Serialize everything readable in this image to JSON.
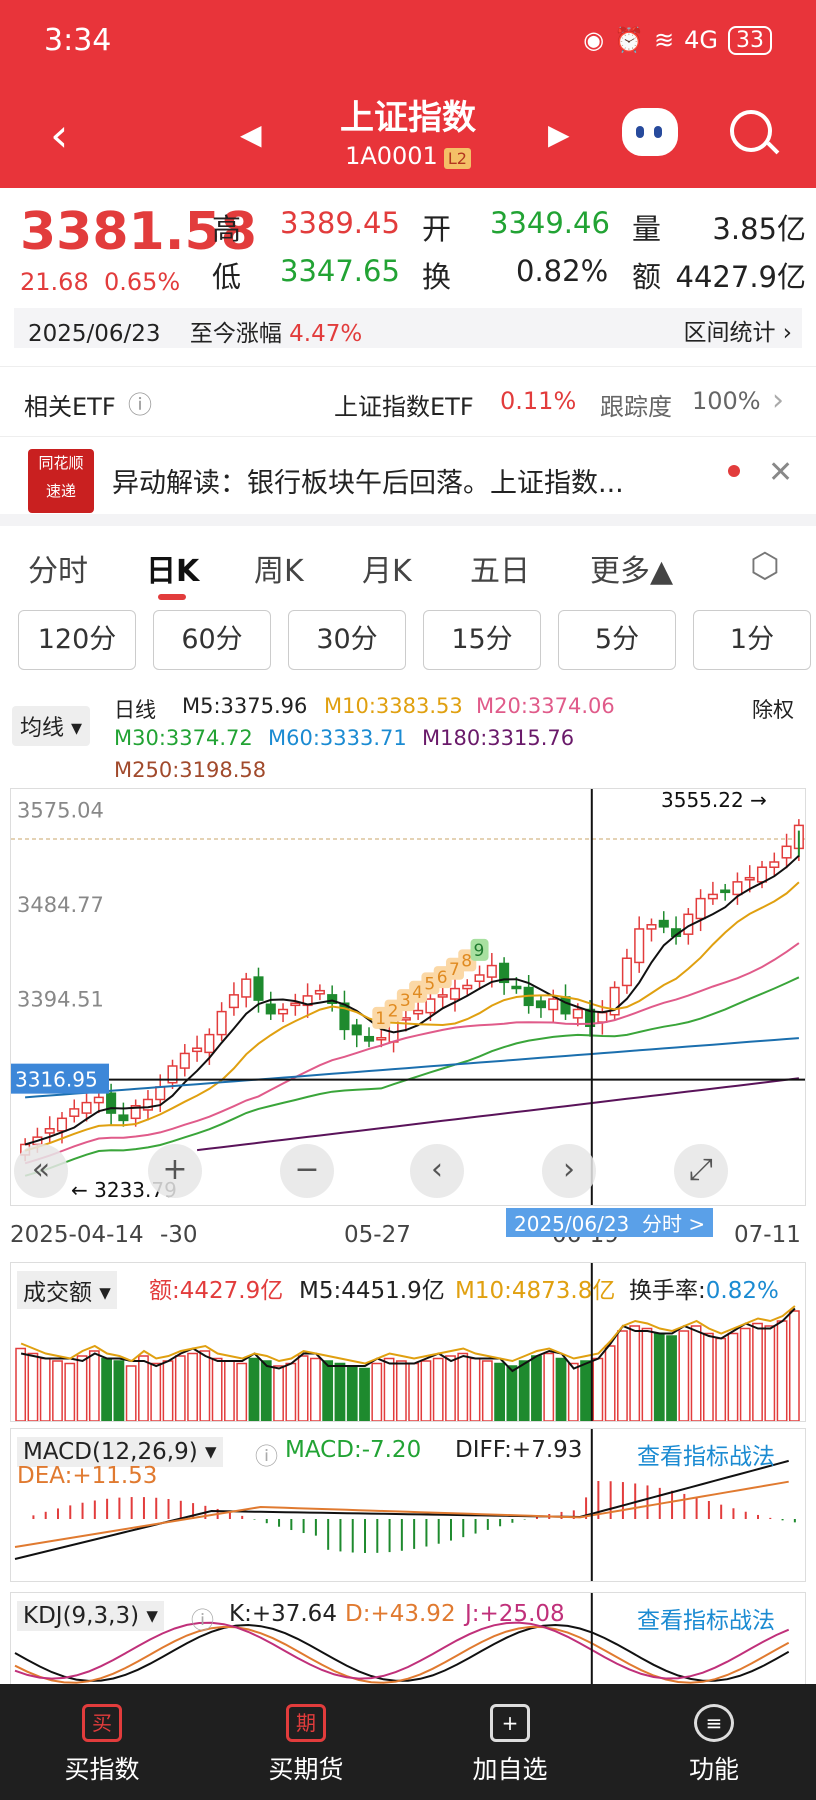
{
  "status": {
    "time": "3:34",
    "battery": "33",
    "signal": "4G"
  },
  "header": {
    "title": "上证指数",
    "code": "1A0001",
    "level": "L2"
  },
  "quote": {
    "price": "3381.58",
    "change": "21.68",
    "change_pct": "0.65%",
    "high_label": "高",
    "high": "3389.45",
    "open_label": "开",
    "open": "3349.46",
    "vol_label": "量",
    "vol": "3.85亿",
    "low_label": "低",
    "low": "3347.65",
    "turnover_label": "换",
    "turnover": "0.82%",
    "amount_label": "额",
    "amount": "4427.9亿"
  },
  "daterow": {
    "date": "2025/06/23",
    "since_label": "至今涨幅",
    "since_value": "4.47%",
    "range_label": "区间统计"
  },
  "etf": {
    "label": "相关ETF",
    "name": "上证指数ETF",
    "pct": "0.11%",
    "track_label": "跟踪度",
    "track": "100%"
  },
  "news": {
    "logo1": "同花顺",
    "logo2": "速递",
    "text": "异动解读：银行板块午后回落。上证指数..."
  },
  "tabs": [
    "分时",
    "日K",
    "周K",
    "月K",
    "五日",
    "更多▲"
  ],
  "intervals": [
    "120分",
    "60分",
    "30分",
    "15分",
    "5分",
    "1分"
  ],
  "legend": {
    "pill": "均线 ▾",
    "daily": "日线",
    "m5": "M5:3375.96",
    "m10": "M10:3383.53",
    "m20": "M20:3374.06",
    "m30": "M30:3374.72",
    "m60": "M60:3333.71",
    "m180": "M180:3315.76",
    "m250": "M250:3198.58",
    "chuquan": "除权"
  },
  "chart_data": {
    "type": "candlestick",
    "y_ticks": [
      "3575.04",
      "3484.77",
      "3394.51"
    ],
    "crosshair_price": "3316.95",
    "high_label": "3555.22",
    "low_label": "3233.79",
    "x_labels": [
      "2025-04-14",
      "-30",
      "05-27",
      "06-19",
      "07-11"
    ],
    "crosshair_date": "2025/06/23",
    "crosshair_link": "分时 >",
    "closes": [
      3255,
      3262,
      3270,
      3280,
      3289,
      3295,
      3300,
      3285,
      3278,
      3292,
      3298,
      3310,
      3330,
      3342,
      3347,
      3360,
      3382,
      3398,
      3413,
      3393,
      3380,
      3384,
      3390,
      3397,
      3402,
      3390,
      3365,
      3360,
      3354,
      3357,
      3375,
      3376,
      3383,
      3394,
      3398,
      3404,
      3407,
      3417,
      3426,
      3410,
      3405,
      3388,
      3386,
      3394,
      3380,
      3384,
      3368,
      3381,
      3405,
      3433,
      3461,
      3465,
      3463,
      3454,
      3475,
      3490,
      3494,
      3496,
      3506,
      3510,
      3520,
      3525,
      3540,
      3560
    ],
    "countdown": [
      "1",
      "2",
      "3",
      "4",
      "5",
      "6",
      "7",
      "8",
      "9"
    ]
  },
  "volume": {
    "pill": "成交额 ▾",
    "amount": "额:4427.9亿",
    "m5": "M5:4451.9亿",
    "m10": "M10:4873.8亿",
    "turnover_label": "换手率:",
    "turnover": "0.82%",
    "values": [
      58,
      54,
      50,
      48,
      46,
      52,
      56,
      50,
      48,
      44,
      52,
      46,
      48,
      52,
      54,
      56,
      50,
      48,
      46,
      50,
      48,
      44,
      46,
      52,
      50,
      48,
      46,
      44,
      42,
      46,
      50,
      48,
      46,
      48,
      50,
      52,
      54,
      50,
      48,
      46,
      44,
      48,
      52,
      54,
      50,
      46,
      48,
      50,
      60,
      72,
      76,
      74,
      70,
      68,
      72,
      76,
      70,
      66,
      70,
      74,
      78,
      76,
      80,
      88
    ]
  },
  "macd": {
    "pill": "MACD(12,26,9) ▾",
    "macd": "MACD:-7.20",
    "diff": "DIFF:+7.93",
    "dea": "DEA:+11.53",
    "link": "查看指标战法"
  },
  "kdj": {
    "pill": "KDJ(9,3,3) ▾",
    "k": "K:+37.64",
    "d": "D:+43.92",
    "j": "J:+25.08",
    "link": "查看指标战法"
  },
  "bottom": [
    {
      "icon": "买",
      "label": "买指数"
    },
    {
      "icon": "期",
      "label": "买期货"
    },
    {
      "icon": "+",
      "label": "加自选"
    },
    {
      "icon": "≡",
      "label": "功能"
    }
  ]
}
